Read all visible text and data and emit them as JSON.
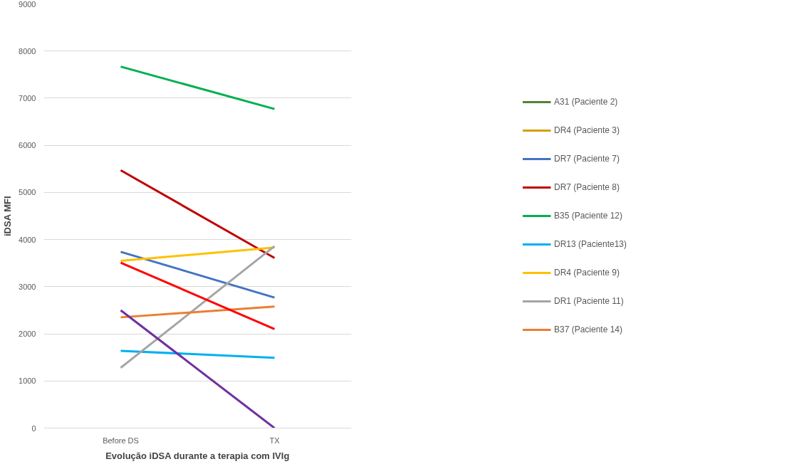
{
  "chart_data": {
    "type": "line",
    "xlabel": "Evolução iDSA durante a terapia com IVIg",
    "ylabel": "iDSA MFI",
    "categories": [
      "Before DS",
      "TX"
    ],
    "ylim": [
      0,
      9000
    ],
    "yticks": [
      0,
      1000,
      2000,
      3000,
      4000,
      5000,
      6000,
      7000,
      8000,
      9000
    ],
    "grid": "y",
    "legend": "right",
    "marker": "none",
    "line_style": "solid",
    "series": [
      {
        "name": "A31 (Paciente 2)",
        "color": "#548235",
        "values": [
          null,
          null
        ]
      },
      {
        "name": "DR4 (Paciente 3)",
        "color": "#d4a000",
        "values": [
          null,
          null
        ]
      },
      {
        "name": "DR7 (Paciente 7)",
        "color": "#4472c4",
        "values": [
          3740,
          2770
        ]
      },
      {
        "name": "DR7 (Paciente 8)",
        "color": "#c00000",
        "values": [
          5470,
          3610
        ]
      },
      {
        "name": "B35 (Paciente 12)",
        "color": "#00b050",
        "values": [
          7670,
          6770
        ]
      },
      {
        "name": "DR13 (Paciente13)",
        "color": "#00b0f0",
        "values": [
          1640,
          1490
        ]
      },
      {
        "name": "DR4 (Paciente 9)",
        "color": "#ffc000",
        "values": [
          3550,
          3830
        ]
      },
      {
        "name": "DR1 (Paciente 11)",
        "color": "#a5a5a5",
        "values": [
          1280,
          3860
        ]
      },
      {
        "name": "B37 (Paciente 14)",
        "color": "#ed7d31",
        "values": [
          2350,
          2580
        ]
      },
      {
        "color": "#ff0000",
        "values": [
          3510,
          2100
        ]
      },
      {
        "color": "#7030a0",
        "values": [
          2500,
          0
        ]
      }
    ]
  }
}
